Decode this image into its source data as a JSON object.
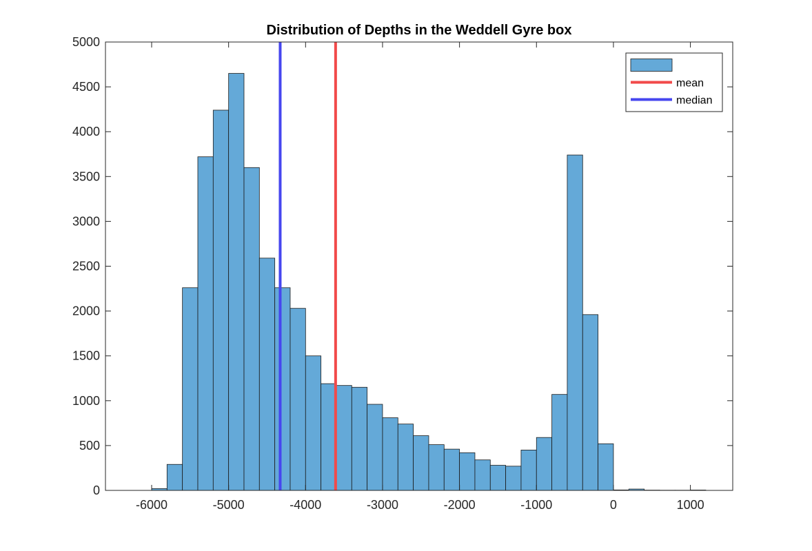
{
  "chart_data": {
    "type": "bar",
    "title": "Distribution of Depths in the Weddell Gyre box",
    "xlabel": "",
    "ylabel": "",
    "xlim": [
      -6600,
      1550
    ],
    "ylim": [
      0,
      5000
    ],
    "xticks": [
      -6000,
      -5000,
      -4000,
      -3000,
      -2000,
      -1000,
      0,
      1000
    ],
    "yticks": [
      0,
      500,
      1000,
      1500,
      2000,
      2500,
      3000,
      3500,
      4000,
      4500,
      5000
    ],
    "bin_width": 200,
    "bins": [
      {
        "x0": -6000,
        "x1": -5800,
        "count": 20
      },
      {
        "x0": -5800,
        "x1": -5600,
        "count": 290
      },
      {
        "x0": -5600,
        "x1": -5400,
        "count": 2260
      },
      {
        "x0": -5400,
        "x1": -5200,
        "count": 3720
      },
      {
        "x0": -5200,
        "x1": -5000,
        "count": 4240
      },
      {
        "x0": -5000,
        "x1": -4800,
        "count": 4650
      },
      {
        "x0": -4800,
        "x1": -4600,
        "count": 3600
      },
      {
        "x0": -4600,
        "x1": -4400,
        "count": 2590
      },
      {
        "x0": -4400,
        "x1": -4200,
        "count": 2260
      },
      {
        "x0": -4200,
        "x1": -4000,
        "count": 2030
      },
      {
        "x0": -4000,
        "x1": -3800,
        "count": 1500
      },
      {
        "x0": -3800,
        "x1": -3600,
        "count": 1190
      },
      {
        "x0": -3600,
        "x1": -3400,
        "count": 1170
      },
      {
        "x0": -3400,
        "x1": -3200,
        "count": 1150
      },
      {
        "x0": -3200,
        "x1": -3000,
        "count": 960
      },
      {
        "x0": -3000,
        "x1": -2800,
        "count": 810
      },
      {
        "x0": -2800,
        "x1": -2600,
        "count": 740
      },
      {
        "x0": -2600,
        "x1": -2400,
        "count": 610
      },
      {
        "x0": -2400,
        "x1": -2200,
        "count": 510
      },
      {
        "x0": -2200,
        "x1": -2000,
        "count": 460
      },
      {
        "x0": -2000,
        "x1": -1800,
        "count": 420
      },
      {
        "x0": -1800,
        "x1": -1600,
        "count": 340
      },
      {
        "x0": -1600,
        "x1": -1400,
        "count": 280
      },
      {
        "x0": -1400,
        "x1": -1200,
        "count": 270
      },
      {
        "x0": -1200,
        "x1": -1000,
        "count": 450
      },
      {
        "x0": -1000,
        "x1": -800,
        "count": 590
      },
      {
        "x0": -800,
        "x1": -600,
        "count": 1070
      },
      {
        "x0": -600,
        "x1": -400,
        "count": 3740
      },
      {
        "x0": -400,
        "x1": -200,
        "count": 1960
      },
      {
        "x0": -200,
        "x1": 0,
        "count": 520
      },
      {
        "x0": 0,
        "x1": 200,
        "count": 5
      },
      {
        "x0": 200,
        "x1": 400,
        "count": 15
      },
      {
        "x0": 400,
        "x1": 600,
        "count": 3
      },
      {
        "x0": 600,
        "x1": 800,
        "count": 2
      },
      {
        "x0": 800,
        "x1": 1000,
        "count": 2
      },
      {
        "x0": 1000,
        "x1": 1200,
        "count": 4
      }
    ],
    "mean": -3610,
    "median": -4330,
    "legend": {
      "placement": "top-right",
      "entries": [
        {
          "label": "",
          "kind": "patch",
          "color": "#64a9d8"
        },
        {
          "label": "mean",
          "kind": "line",
          "color": "#f24a4a"
        },
        {
          "label": "median",
          "kind": "line",
          "color": "#4646ef"
        }
      ]
    },
    "colors": {
      "bar_fill": "#64a9d8",
      "bar_edge": "#1a1a1a",
      "mean_line": "#f24a4a",
      "median_line": "#4646ef",
      "axis": "#262626"
    },
    "grid": false
  }
}
